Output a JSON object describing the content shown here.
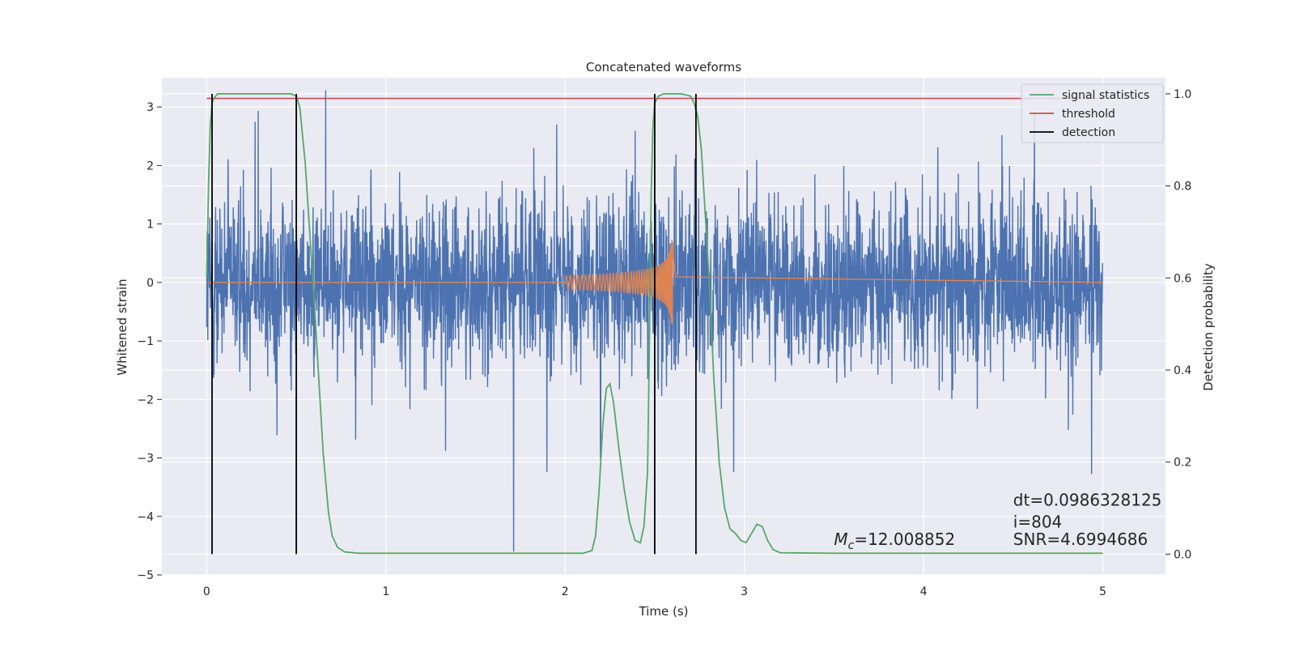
{
  "chart_data": {
    "type": "line",
    "title": "Concatenated waveforms",
    "xlabel": "Time (s)",
    "ylabel": "Whitened strain",
    "y2label": "Detection probability",
    "xlim": [
      -0.25,
      5.35
    ],
    "ylim": [
      -5.0,
      3.5
    ],
    "y2lim": [
      -0.045,
      1.035
    ],
    "grid": true,
    "legend_placement": "top-right",
    "x_ticks": [
      0,
      1,
      2,
      3,
      4,
      5
    ],
    "x_tick_labels": [
      "0",
      "1",
      "2",
      "3",
      "4",
      "5"
    ],
    "y_ticks": [
      3,
      2,
      1,
      0,
      -1,
      -2,
      -3,
      -4,
      -5
    ],
    "y_tick_labels": [
      "3",
      "2",
      "1",
      "0",
      "−1",
      "−2",
      "−3",
      "−4",
      "−5"
    ],
    "y2_ticks": [
      1.0,
      0.8,
      0.6,
      0.4,
      0.2,
      0.0
    ],
    "y2_tick_labels": [
      "1.0",
      "0.8",
      "0.6",
      "0.4",
      "0.2",
      "0.0"
    ],
    "series": [
      {
        "name": "signal statistics",
        "axis": "right",
        "color": "#55a868",
        "x": [
          0.0,
          0.01,
          0.02,
          0.03,
          0.04,
          0.06,
          0.1,
          0.2,
          0.3,
          0.4,
          0.47,
          0.5,
          0.52,
          0.55,
          0.6,
          0.65,
          0.68,
          0.7,
          0.73,
          0.77,
          0.85,
          1.0,
          1.5,
          2.0,
          2.1,
          2.15,
          2.17,
          2.19,
          2.21,
          2.23,
          2.25,
          2.27,
          2.3,
          2.33,
          2.36,
          2.39,
          2.42,
          2.44,
          2.46,
          2.47,
          2.48,
          2.49,
          2.5,
          2.52,
          2.55,
          2.6,
          2.65,
          2.7,
          2.72,
          2.74,
          2.76,
          2.8,
          2.83,
          2.86,
          2.89,
          2.92,
          2.95,
          2.98,
          3.01,
          3.04,
          3.07,
          3.1,
          3.13,
          3.16,
          3.2,
          3.5,
          4.0,
          4.5,
          5.0
        ],
        "values": [
          0.6,
          0.8,
          0.93,
          0.98,
          0.99,
          1.0,
          1.0,
          1.0,
          1.0,
          1.0,
          1.0,
          0.995,
          0.97,
          0.85,
          0.55,
          0.22,
          0.09,
          0.04,
          0.015,
          0.005,
          0.002,
          0.002,
          0.002,
          0.002,
          0.002,
          0.008,
          0.04,
          0.14,
          0.28,
          0.36,
          0.37,
          0.33,
          0.23,
          0.14,
          0.07,
          0.03,
          0.025,
          0.06,
          0.18,
          0.45,
          0.78,
          0.93,
          0.98,
          0.995,
          1.0,
          1.0,
          1.0,
          0.995,
          0.98,
          0.95,
          0.88,
          0.62,
          0.38,
          0.2,
          0.1,
          0.055,
          0.045,
          0.03,
          0.025,
          0.045,
          0.065,
          0.06,
          0.03,
          0.01,
          0.003,
          0.002,
          0.002,
          0.002,
          0.002
        ]
      },
      {
        "name": "threshold",
        "axis": "right",
        "color": "#c44e52",
        "x": [
          0.0,
          5.0
        ],
        "values": [
          0.99,
          0.99
        ]
      },
      {
        "name": "detection",
        "axis": "right",
        "color": "#000000",
        "type": "vlines",
        "x": [
          0.03,
          0.5,
          2.5,
          2.73
        ],
        "ymin": 0.0,
        "ymax": 1.0
      },
      {
        "axis": "left",
        "color": "#4c72b0",
        "type": "noise",
        "x_range": [
          0.0,
          5.0
        ],
        "amplitude_range": [
          -4.6,
          3.5
        ]
      },
      {
        "axis": "left",
        "color": "#dd8452",
        "type": "chirp",
        "x_range": [
          2.0,
          2.62
        ],
        "merger_time": 2.6,
        "peak_amplitude": 0.7
      }
    ],
    "annotations": [
      {
        "text_prefix": "M",
        "text_subscript": "c",
        "text": "=12.008852",
        "x": 3.5,
        "y": 0.02
      },
      {
        "text": "dt=0.0986328125",
        "x": 4.5,
        "y": 0.105
      },
      {
        "text": " i=804",
        "x": 4.5,
        "y": 0.058
      },
      {
        "text": "SNR=4.6994686",
        "x": 4.5,
        "y": 0.02
      }
    ]
  }
}
